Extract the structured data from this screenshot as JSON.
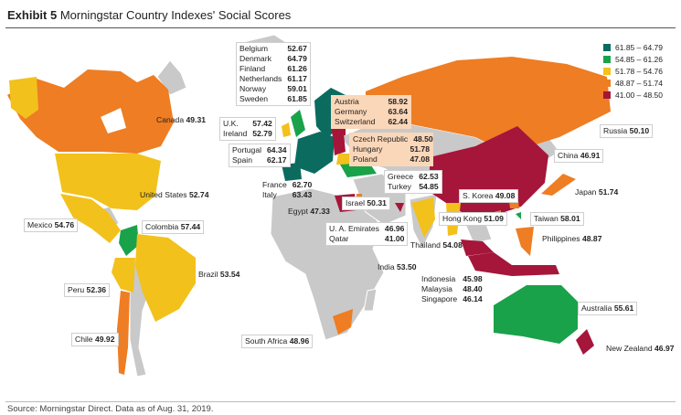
{
  "title": {
    "exhibit": "Exhibit 5",
    "text": "Morningstar Country Indexes' Social Scores"
  },
  "source": "Source: Morningstar Direct. Data as of Aug. 31, 2019.",
  "colors": {
    "dark_green": "#0b6b5f",
    "green": "#1aa24a",
    "yellow": "#f2c11b",
    "orange": "#ee7d23",
    "crimson": "#a5163a",
    "land_gray": "#c9c9c9",
    "light_peach": "#fbd7b9"
  },
  "legend": [
    {
      "range": "61.85 – 64.79",
      "color": "#0b6b5f"
    },
    {
      "range": "54.85 – 61.26",
      "color": "#1aa24a"
    },
    {
      "range": "51.78 – 54.76",
      "color": "#f2c11b"
    },
    {
      "range": "48.87 – 51.74",
      "color": "#ee7d23"
    },
    {
      "range": "41.00 – 48.50",
      "color": "#a5163a"
    }
  ],
  "labels": {
    "nordics": [
      {
        "name": "Belgium",
        "score": "52.67"
      },
      {
        "name": "Denmark",
        "score": "64.79"
      },
      {
        "name": "Finland",
        "score": "61.26"
      },
      {
        "name": "Netherlands",
        "score": "61.17"
      },
      {
        "name": "Norway",
        "score": "59.01"
      },
      {
        "name": "Sweden",
        "score": "61.85"
      }
    ],
    "central": [
      {
        "name": "Austria",
        "score": "58.92"
      },
      {
        "name": "Germany",
        "score": "63.64"
      },
      {
        "name": "Switzerland",
        "score": "62.44"
      }
    ],
    "east": [
      {
        "name": "Czech Republic",
        "score": "48.50"
      },
      {
        "name": "Hungary",
        "score": "51.78"
      },
      {
        "name": "Poland",
        "score": "47.08"
      }
    ],
    "uk": [
      {
        "name": "U.K.",
        "score": "57.42"
      },
      {
        "name": "Ireland",
        "score": "52.79"
      }
    ],
    "iberia": [
      {
        "name": "Portugal",
        "score": "64.34"
      },
      {
        "name": "Spain",
        "score": "62.17"
      }
    ],
    "franceitaly": [
      {
        "name": "France",
        "score": "62.70"
      },
      {
        "name": "Italy",
        "score": "63.43"
      }
    ],
    "greece": [
      {
        "name": "Greece",
        "score": "62.53"
      },
      {
        "name": "Turkey",
        "score": "54.85"
      }
    ],
    "gulf": [
      {
        "name": "U. A. Emirates",
        "score": "46.96"
      },
      {
        "name": "Qatar",
        "score": "41.00"
      }
    ],
    "asean": [
      {
        "name": "Indonesia",
        "score": "45.98"
      },
      {
        "name": "Malaysia",
        "score": "48.40"
      },
      {
        "name": "Singapore",
        "score": "46.14"
      }
    ],
    "canada": {
      "name": "Canada",
      "score": "49.31"
    },
    "us": {
      "name": "United States",
      "score": "52.74"
    },
    "mexico": {
      "name": "Mexico",
      "score": "54.76"
    },
    "colombia": {
      "name": "Colombia",
      "score": "57.44"
    },
    "peru": {
      "name": "Peru",
      "score": "52.36"
    },
    "brazil": {
      "name": "Brazil",
      "score": "53.54"
    },
    "chile": {
      "name": "Chile",
      "score": "49.92"
    },
    "egypt": {
      "name": "Egypt",
      "score": "47.33"
    },
    "israel": {
      "name": "Israel",
      "score": "50.31"
    },
    "southafrica": {
      "name": "South Africa",
      "score": "48.96"
    },
    "russia": {
      "name": "Russia",
      "score": "50.10"
    },
    "china": {
      "name": "China",
      "score": "46.91"
    },
    "japan": {
      "name": "Japan",
      "score": "51.74"
    },
    "korea": {
      "name": "S. Korea",
      "score": "49.08"
    },
    "hongkong": {
      "name": "Hong Kong",
      "score": "51.09"
    },
    "taiwan": {
      "name": "Taiwan",
      "score": "58.01"
    },
    "thailand": {
      "name": "Thailand",
      "score": "54.08"
    },
    "philippines": {
      "name": "Philippines",
      "score": "48.87"
    },
    "india": {
      "name": "India",
      "score": "53.50"
    },
    "australia": {
      "name": "Australia",
      "score": "55.61"
    },
    "newzealand": {
      "name": "New Zealand",
      "score": "46.97"
    }
  }
}
